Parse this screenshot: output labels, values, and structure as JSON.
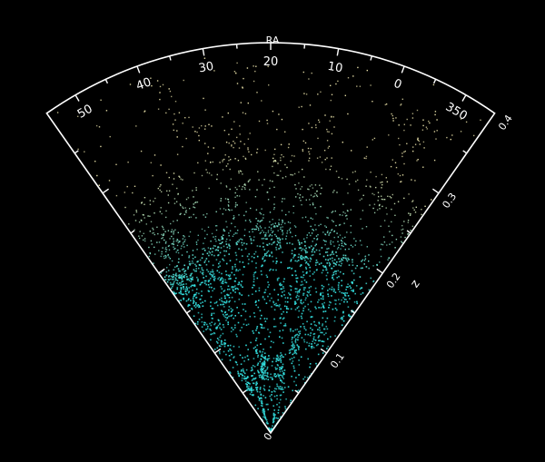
{
  "chart_data": {
    "type": "scatter",
    "projection": "polar-wedge",
    "angular_axis": {
      "label": "RA",
      "ticks": [
        "50",
        "40",
        "30",
        "20",
        "10",
        "0",
        "350"
      ],
      "range_deg": [
        55,
        -15
      ]
    },
    "radial_axis": {
      "label": "z",
      "ticks": [
        "0",
        "0.1",
        "0.2",
        "0.3",
        "0.4"
      ],
      "range": [
        0,
        0.4
      ]
    },
    "grid": false,
    "point_colors": {
      "near": "#33e0e0",
      "far": "#e8e0a8"
    }
  }
}
